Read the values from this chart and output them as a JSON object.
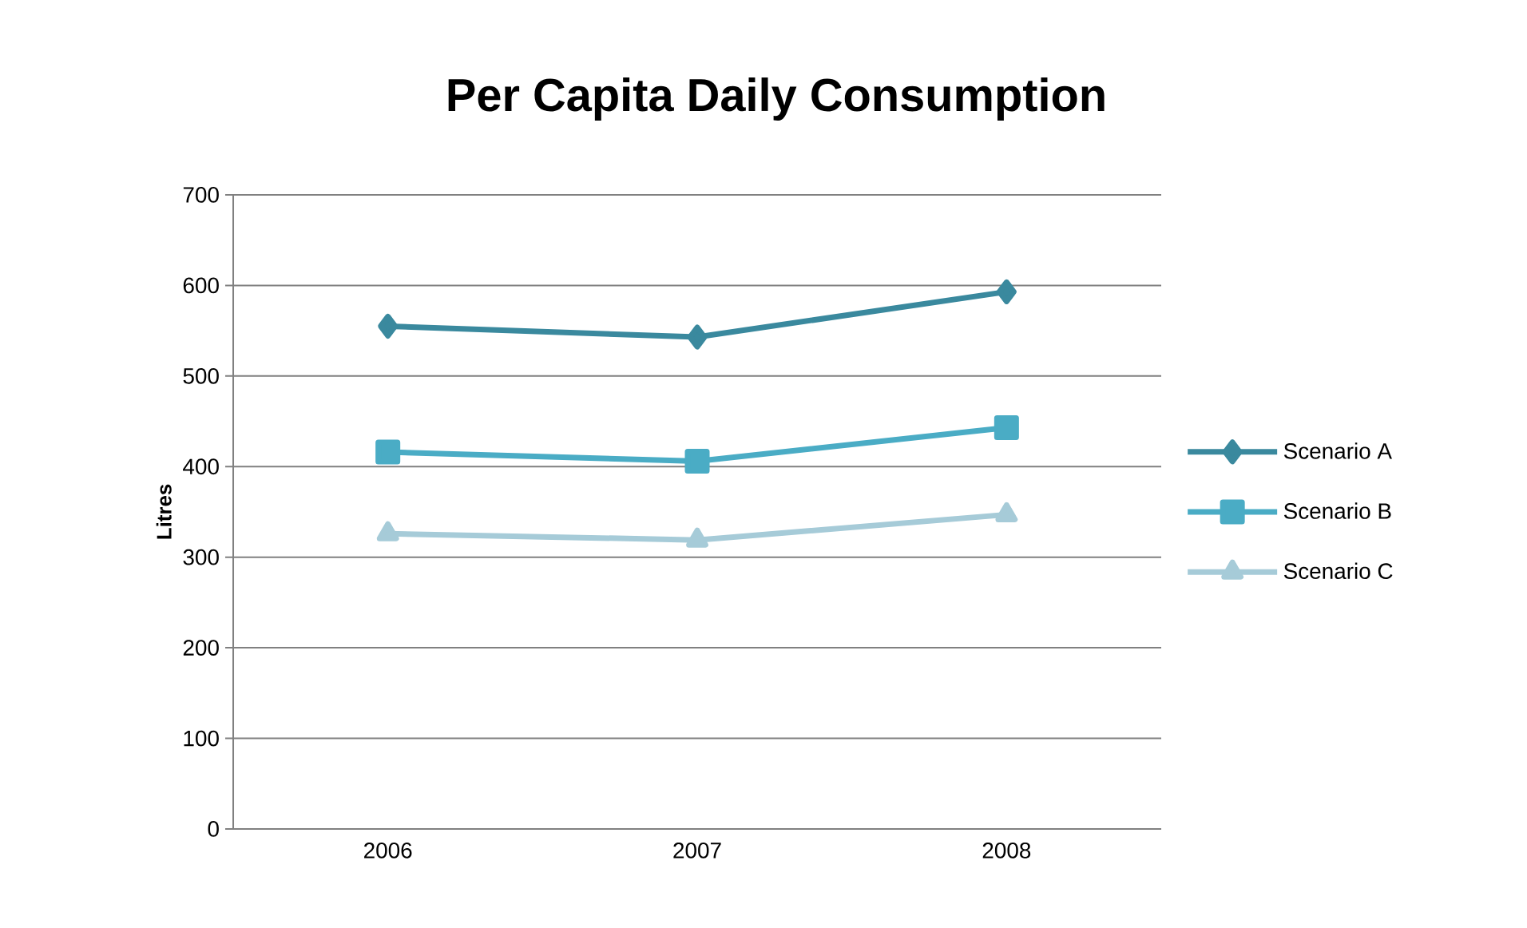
{
  "chart_data": {
    "type": "line",
    "title": "Per Capita Daily Consumption",
    "ylabel": "Litres",
    "categories": [
      "2006",
      "2007",
      "2008"
    ],
    "series": [
      {
        "name": "Scenario A",
        "color": "#3a899e",
        "marker": "diamond",
        "values": [
          555,
          543,
          593
        ]
      },
      {
        "name": "Scenario B",
        "color": "#4aacc5",
        "marker": "square",
        "values": [
          416,
          406,
          443
        ]
      },
      {
        "name": "Scenario C",
        "color": "#a6cbd8",
        "marker": "triangle",
        "values": [
          326,
          319,
          347
        ]
      }
    ],
    "ylim": [
      0,
      700
    ],
    "yticks": [
      0,
      100,
      200,
      300,
      400,
      500,
      600,
      700
    ],
    "grid": "y",
    "legend": "right",
    "line_style": "solid"
  }
}
